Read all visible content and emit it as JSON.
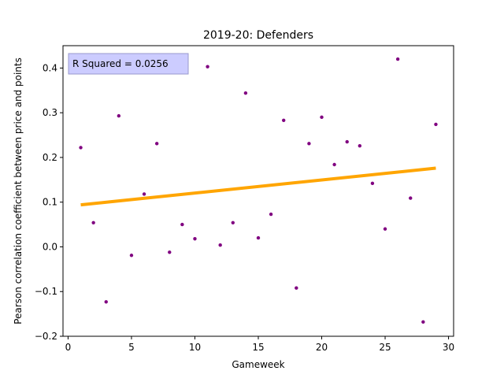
{
  "chart_data": {
    "type": "scatter",
    "title": "2019-20: Defenders",
    "xlabel": "Gameweek",
    "ylabel": "Pearson correlation coefficient between price and points",
    "xlim": [
      -0.4,
      30.4
    ],
    "ylim": [
      -0.2,
      0.45
    ],
    "xticks": [
      0,
      5,
      10,
      15,
      20,
      25,
      30
    ],
    "yticks": [
      -0.2,
      -0.1,
      0.0,
      0.1,
      0.2,
      0.3,
      0.4
    ],
    "xtick_labels": [
      "0",
      "5",
      "10",
      "15",
      "20",
      "25",
      "30"
    ],
    "ytick_labels": [
      "−0.2",
      "−0.1",
      "0.0",
      "0.1",
      "0.2",
      "0.3",
      "0.4"
    ],
    "grid": false,
    "annotation": "R Squared = 0.0256",
    "annotation_position": "top-left",
    "points": {
      "x": [
        1,
        2,
        3,
        4,
        5,
        6,
        7,
        8,
        9,
        10,
        11,
        12,
        13,
        14,
        15,
        16,
        17,
        18,
        19,
        20,
        21,
        22,
        23,
        24,
        25,
        26,
        27,
        28,
        29
      ],
      "y": [
        0.222,
        0.054,
        -0.123,
        0.293,
        -0.019,
        0.118,
        0.231,
        -0.012,
        0.05,
        0.018,
        0.403,
        0.004,
        0.054,
        0.344,
        0.02,
        0.073,
        0.283,
        -0.092,
        0.231,
        0.29,
        0.184,
        0.235,
        0.226,
        0.142,
        0.04,
        0.42,
        0.109,
        -0.168,
        0.274
      ]
    },
    "trendline": {
      "x": [
        1,
        29
      ],
      "y": [
        0.094,
        0.176
      ]
    },
    "colors": {
      "points": "#800080",
      "trendline": "#ffa500",
      "annotation_bg": "#ccccff",
      "annotation_border": "#9999cc"
    }
  }
}
